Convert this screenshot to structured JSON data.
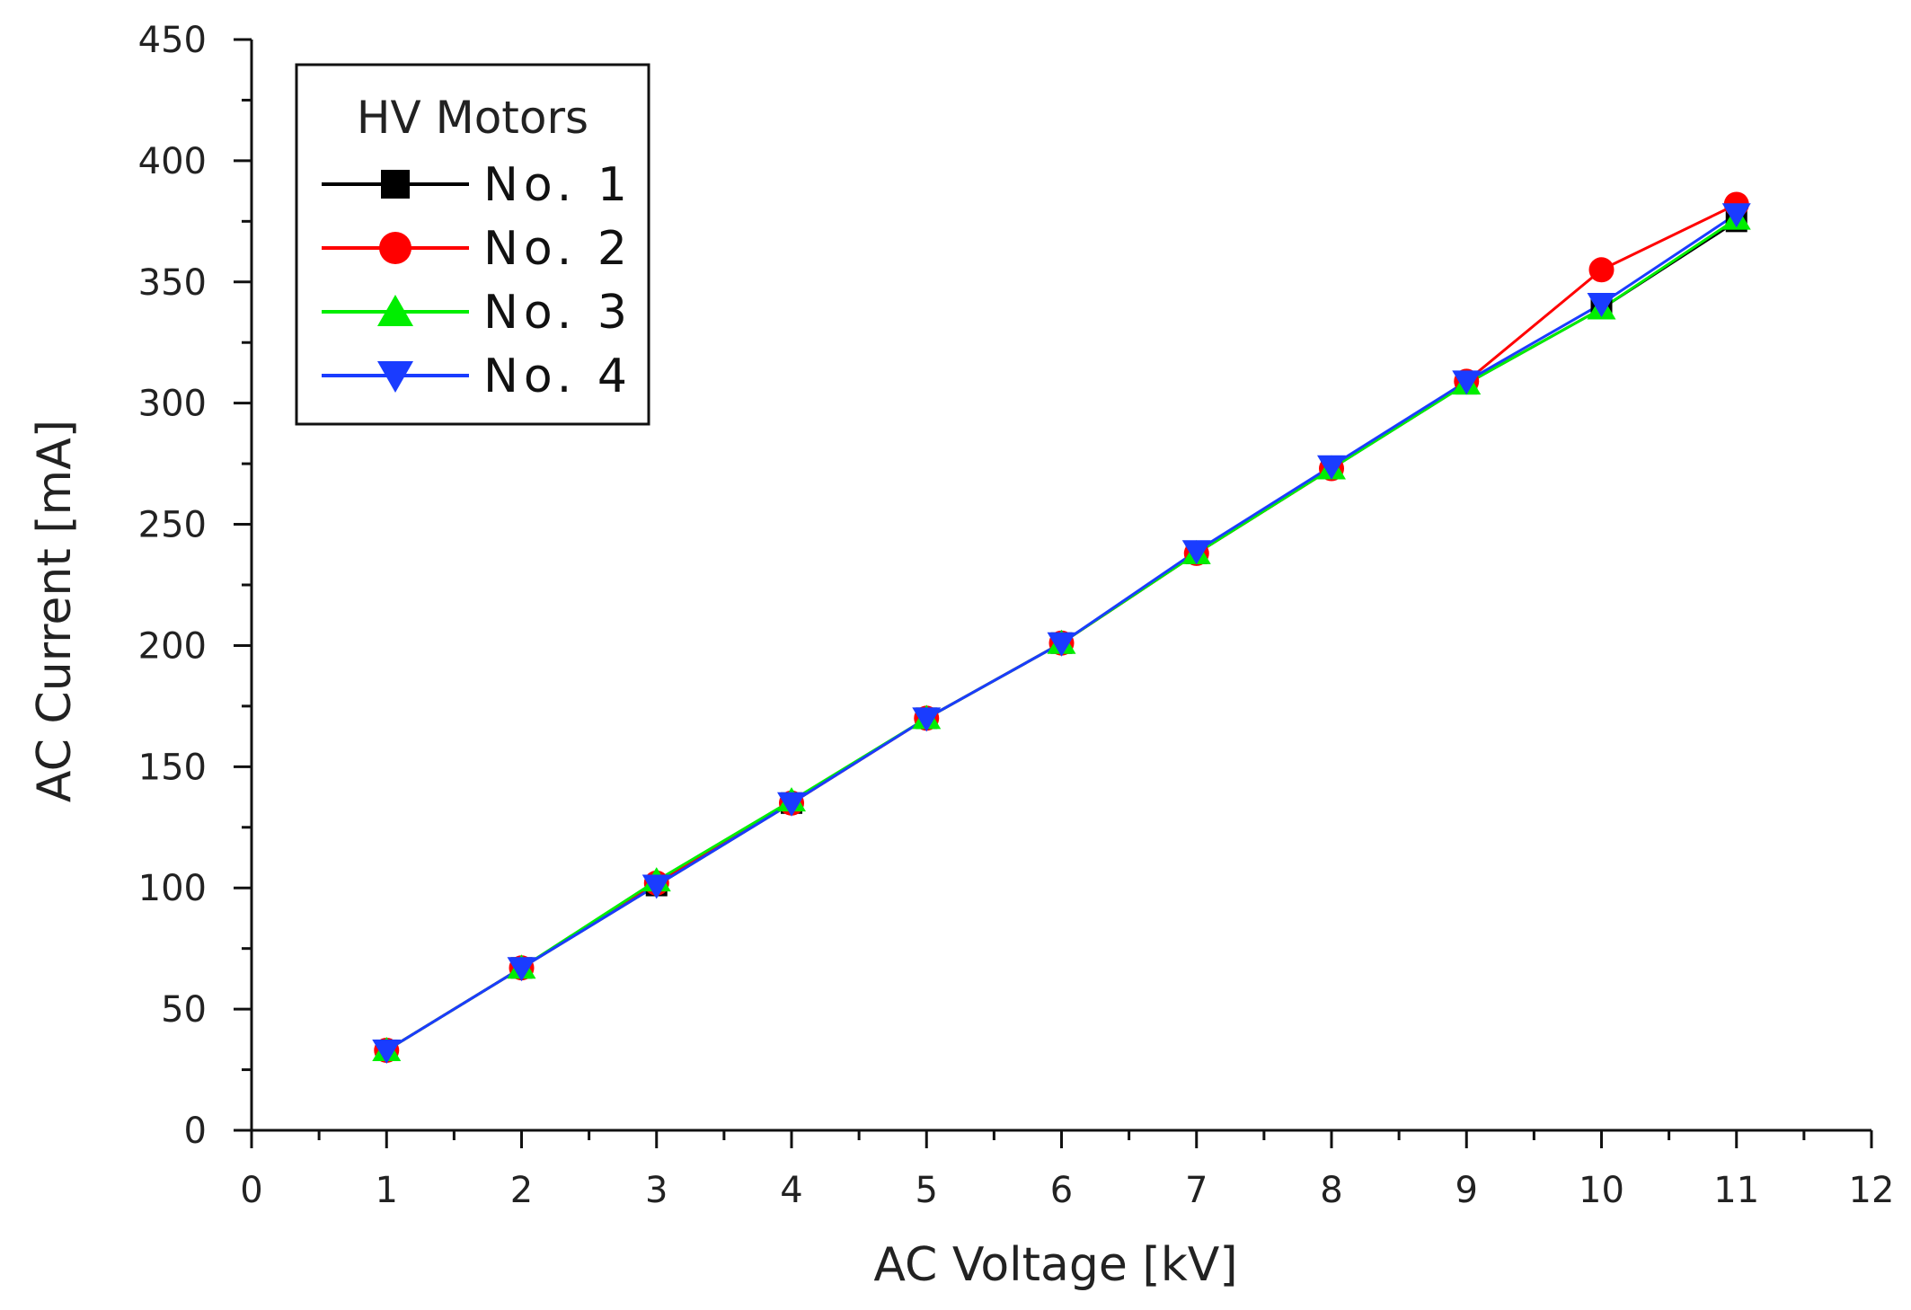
{
  "chart_data": {
    "type": "line",
    "title": "",
    "xlabel": "AC Voltage [kV]",
    "ylabel": "AC Current [mA]",
    "xlim": [
      0,
      12
    ],
    "ylim": [
      0,
      450
    ],
    "xticks": [
      0,
      1,
      2,
      3,
      4,
      5,
      6,
      7,
      8,
      9,
      10,
      11,
      12
    ],
    "yticks": [
      0,
      50,
      100,
      150,
      200,
      250,
      300,
      350,
      400,
      450
    ],
    "x_tick_labels": [
      "0",
      "1",
      "2",
      "3",
      "4",
      "5",
      "6",
      "7",
      "8",
      "9",
      "10",
      "11",
      "12"
    ],
    "y_tick_labels": [
      "0",
      "50",
      "100",
      "150",
      "200",
      "250",
      "300",
      "350",
      "400",
      "450"
    ],
    "grid": false,
    "legend": {
      "title": "HV Motors",
      "position": "top-left"
    },
    "x": [
      1,
      2,
      3,
      4,
      5,
      6,
      7,
      8,
      9,
      10,
      11
    ],
    "series": [
      {
        "name": "No. 1",
        "color": "#000000",
        "marker": "square",
        "values": [
          33,
          67,
          101,
          135,
          170,
          201,
          238,
          273,
          308,
          339,
          375
        ]
      },
      {
        "name": "No. 2",
        "color": "#ff0000",
        "marker": "circle",
        "values": [
          33,
          67,
          102,
          135,
          170,
          201,
          238,
          273,
          309,
          355,
          382
        ]
      },
      {
        "name": "No. 3",
        "color": "#00ee00",
        "marker": "triangle-up",
        "values": [
          33,
          67,
          103,
          136,
          170,
          201,
          238,
          273,
          308,
          339,
          376
        ]
      },
      {
        "name": "No. 4",
        "color": "#1a3cff",
        "marker": "triangle-down",
        "values": [
          33,
          67,
          101,
          135,
          170,
          201,
          239,
          274,
          309,
          341,
          378
        ]
      }
    ]
  }
}
